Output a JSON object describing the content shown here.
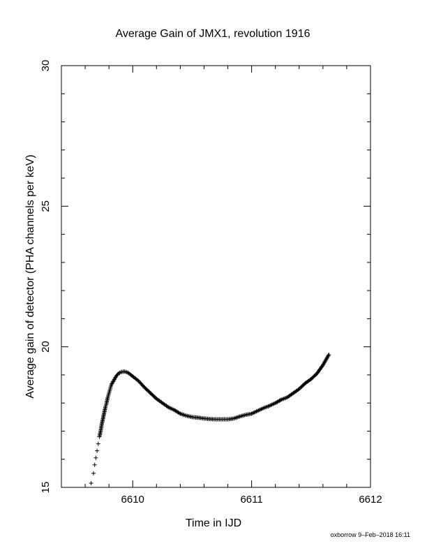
{
  "chart_data": {
    "type": "scatter",
    "title": "Average Gain of JMX1, revolution 1916",
    "xlabel": "Time in IJD",
    "ylabel": "Average gain of detector (PHA channels per keV)",
    "xlim": [
      6609.4,
      6612.0
    ],
    "ylim": [
      15,
      30
    ],
    "xticks": [
      6610,
      6611,
      6612
    ],
    "yticks": [
      15,
      20,
      25,
      30
    ],
    "x_minor_step": 0.2,
    "y_minor_step": 1,
    "grid": false,
    "legend": "none",
    "marker": "plus",
    "marker_color": "#000000",
    "series": [
      {
        "points": [
          [
            6609.65,
            15.15
          ],
          [
            6609.67,
            15.5
          ],
          [
            6609.68,
            15.8
          ],
          [
            6609.69,
            16.05
          ],
          [
            6609.7,
            16.3
          ],
          [
            6609.71,
            16.55
          ],
          [
            6609.72,
            16.8
          ],
          [
            6609.73,
            17.0
          ],
          [
            6609.74,
            17.25
          ],
          [
            6609.75,
            17.45
          ],
          [
            6609.76,
            17.65
          ],
          [
            6609.77,
            17.85
          ],
          [
            6609.78,
            18.0
          ],
          [
            6609.79,
            18.2
          ],
          [
            6609.8,
            18.35
          ],
          [
            6609.81,
            18.5
          ],
          [
            6609.82,
            18.65
          ],
          [
            6609.84,
            18.8
          ],
          [
            6609.86,
            18.95
          ],
          [
            6609.88,
            19.05
          ],
          [
            6609.9,
            19.1
          ],
          [
            6609.93,
            19.12
          ],
          [
            6609.96,
            19.08
          ],
          [
            6610.0,
            18.95
          ],
          [
            6610.05,
            18.78
          ],
          [
            6610.1,
            18.55
          ],
          [
            6610.15,
            18.35
          ],
          [
            6610.2,
            18.15
          ],
          [
            6610.25,
            18.0
          ],
          [
            6610.3,
            17.85
          ],
          [
            6610.35,
            17.75
          ],
          [
            6610.4,
            17.62
          ],
          [
            6610.45,
            17.55
          ],
          [
            6610.5,
            17.5
          ],
          [
            6610.55,
            17.48
          ],
          [
            6610.6,
            17.45
          ],
          [
            6610.65,
            17.43
          ],
          [
            6610.7,
            17.42
          ],
          [
            6610.75,
            17.42
          ],
          [
            6610.8,
            17.42
          ],
          [
            6610.85,
            17.45
          ],
          [
            6610.9,
            17.52
          ],
          [
            6610.95,
            17.58
          ],
          [
            6611.0,
            17.62
          ],
          [
            6611.05,
            17.72
          ],
          [
            6611.1,
            17.82
          ],
          [
            6611.15,
            17.9
          ],
          [
            6611.2,
            18.0
          ],
          [
            6611.25,
            18.12
          ],
          [
            6611.3,
            18.2
          ],
          [
            6611.35,
            18.35
          ],
          [
            6611.4,
            18.5
          ],
          [
            6611.45,
            18.7
          ],
          [
            6611.5,
            18.85
          ],
          [
            6611.55,
            19.05
          ],
          [
            6611.6,
            19.35
          ],
          [
            6611.65,
            19.72
          ]
        ]
      }
    ]
  },
  "footer": "oxborrow 9–Feb–2018 16:11"
}
